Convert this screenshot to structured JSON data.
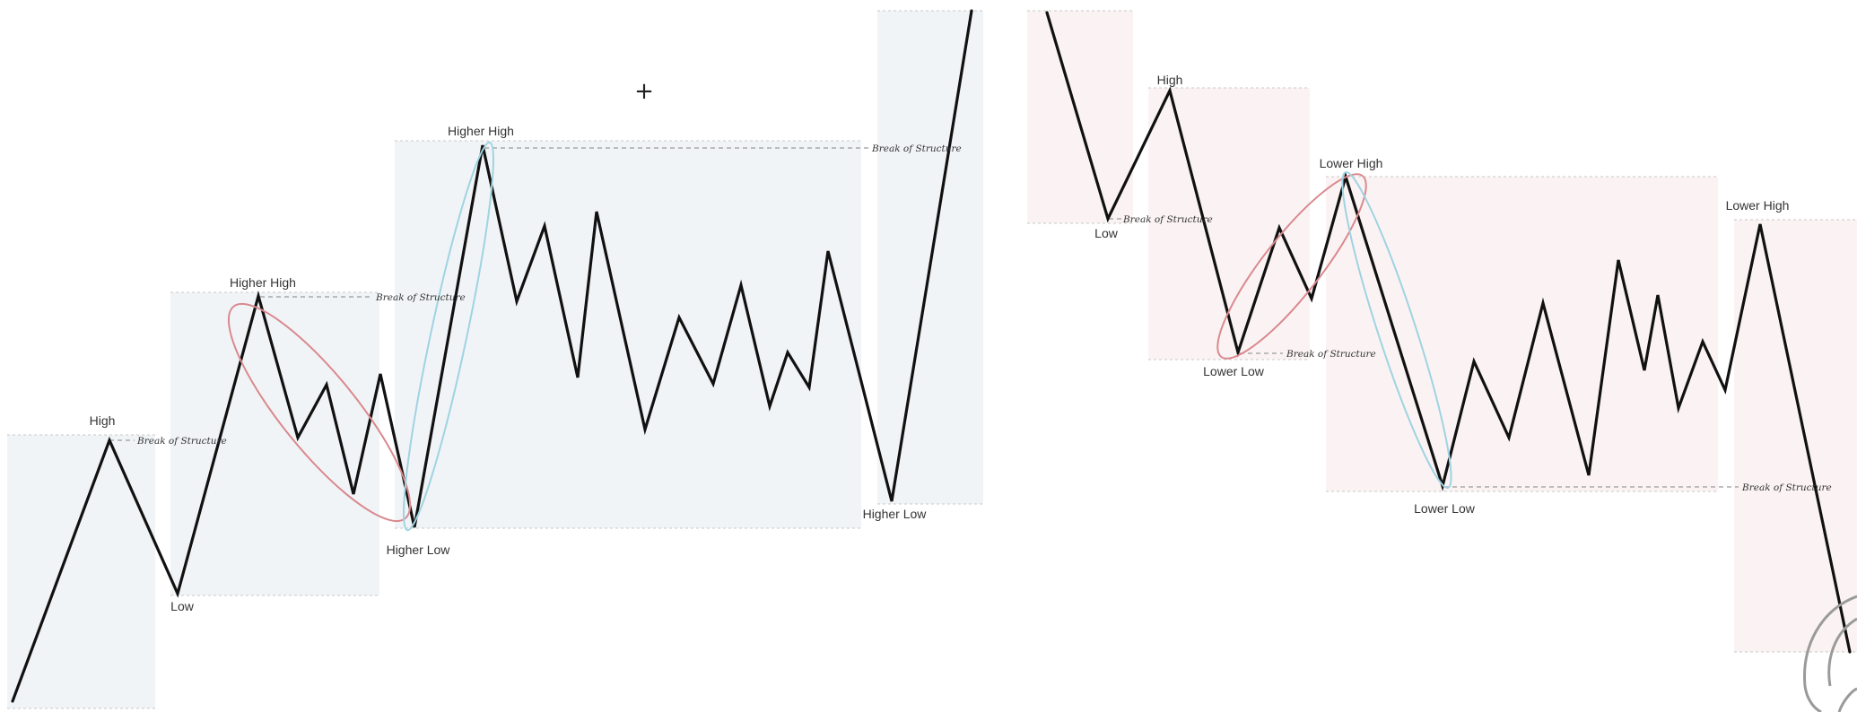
{
  "colors": {
    "price_line": "#111111",
    "bullish_zone": "#f1f4f6",
    "bearish_zone": "#fbf3f3",
    "dashed_line": "#9a9a9a",
    "red_ellipse": "#d9898f",
    "blue_ellipse": "#9fd3e2"
  },
  "cursor_glyph": "+",
  "bullish": {
    "labels": {
      "high": "High",
      "low": "Low",
      "higher_high_1": "Higher High",
      "higher_low_1": "Higher Low",
      "higher_high_2": "Higher High",
      "higher_low_2": "Higher Low"
    },
    "bos": [
      "Break of Structure",
      "Break of Structure",
      "Break of Structure"
    ]
  },
  "bearish": {
    "labels": {
      "low": "Low",
      "high": "High",
      "lower_low_1": "Lower Low",
      "lower_high_1": "Lower High",
      "lower_low_2": "Lower Low",
      "lower_high_2": "Lower High"
    },
    "bos": [
      "Break of Structure",
      "Break of Structure",
      "Break of Structure"
    ]
  },
  "decor": {
    "logo_icon": "partial-logo-icon"
  }
}
